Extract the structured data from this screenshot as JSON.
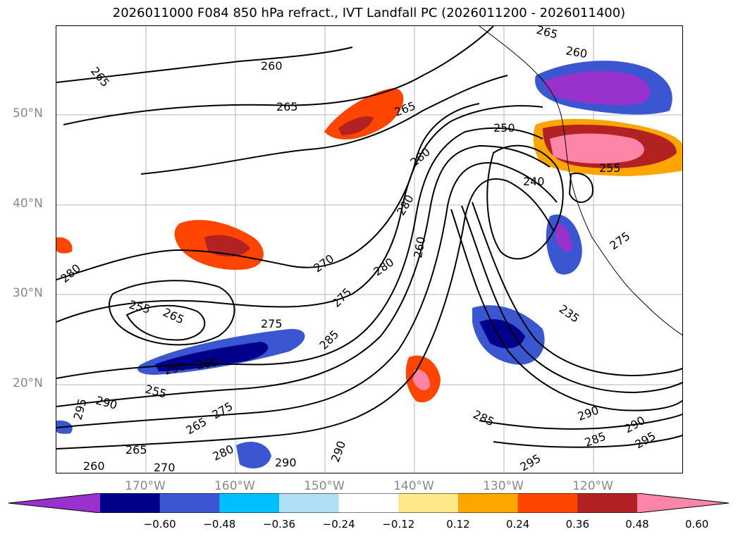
{
  "title": "2026011000 F084 850 hPa refract., IVT Landfall PC (2026011200 - 2026011400)",
  "axes": {
    "lat_labels": [
      "50°N",
      "40°N",
      "30°N",
      "20°N"
    ],
    "lon_labels": [
      "170°W",
      "160°W",
      "150°W",
      "140°W",
      "130°W",
      "120°W"
    ]
  },
  "colorbar": {
    "ticks": [
      "−0.60",
      "−0.48",
      "−0.36",
      "−0.24",
      "−0.12",
      "0.12",
      "0.24",
      "0.36",
      "0.48",
      "0.60"
    ],
    "colors": [
      "#9932cc",
      "#00008b",
      "#3a56d0",
      "#00bfff",
      "#b0e0f8",
      "#ffffff",
      "#ffe88a",
      "#ffa500",
      "#ff4500",
      "#b22222",
      "#ff85a8"
    ]
  },
  "contour_labels": [
    "265",
    "260",
    "265",
    "265",
    "265",
    "260",
    "280",
    "280",
    "280",
    "270",
    "260",
    "280",
    "275",
    "255",
    "265",
    "275",
    "285",
    "250",
    "260",
    "255",
    "290",
    "295",
    "275",
    "265",
    "265",
    "260",
    "270",
    "280",
    "290",
    "290",
    "285",
    "290",
    "285",
    "290",
    "295",
    "295",
    "250",
    "240",
    "255",
    "235",
    "275"
  ],
  "map_colors": {
    "positive_strong": "#b22222",
    "positive_mid": "#ff4500",
    "positive_low": "#ffa500",
    "positive_edge": "#ffe88a",
    "positive_max": "#ff85a8",
    "negative_max": "#9932cc",
    "negative_strong": "#00008b",
    "negative_mid": "#3a56d0",
    "negative_low": "#00bfff"
  }
}
